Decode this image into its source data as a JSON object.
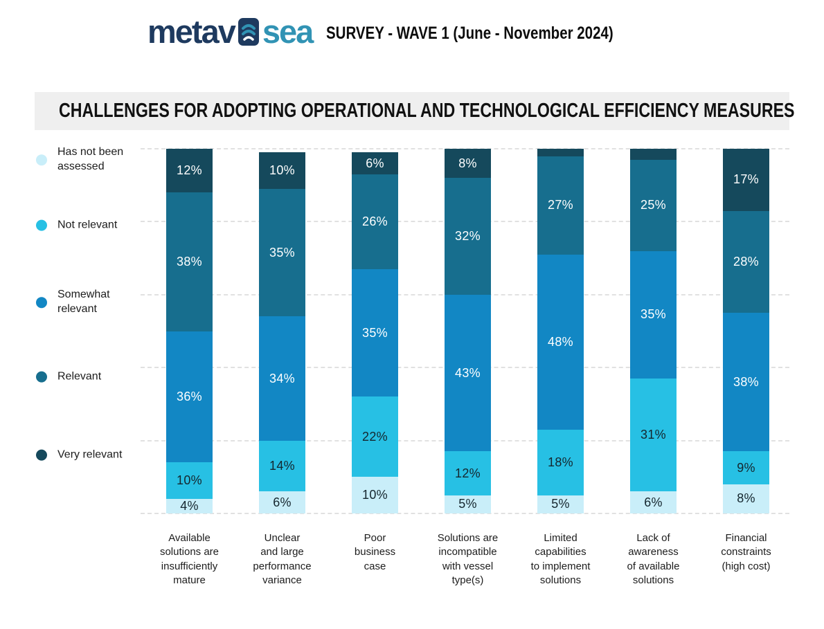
{
  "header": {
    "logo": {
      "text_left": "metav",
      "text_right": "sea",
      "navy": "#1e3a5f",
      "teal": "#3193b4",
      "icon": "wave-chevrons-icon"
    },
    "survey_title": "SURVEY - WAVE 1 (June - November 2024)"
  },
  "chart_data": {
    "type": "bar",
    "stacked": true,
    "title": "CHALLENGES FOR ADOPTING OPERATIONAL AND TECHNOLOGICAL EFFICIENCY MEASURES",
    "unit": "%",
    "ylim": [
      0,
      100
    ],
    "gridlines": [
      0,
      20,
      40,
      60,
      80,
      100
    ],
    "grid_style": "dashed",
    "legend_position": "left",
    "min_label_value": 4,
    "categories": [
      "Available\nsolutions are\ninsufficiently\nmature",
      "Unclear\nand large\nperformance\nvariance",
      "Poor\nbusiness\ncase",
      "Solutions are\nincompatible\nwith vessel\ntype(s)",
      "Limited\ncapabilities\nto implement\nsolutions",
      "Lack of\nawareness\nof available\nsolutions",
      "Financial\nconstraints\n(high cost)"
    ],
    "series": [
      {
        "name": "Has not been assessed",
        "color": "#c9eef9",
        "label_color": "#15262e",
        "values": [
          4,
          6,
          10,
          5,
          5,
          6,
          8
        ]
      },
      {
        "name": "Not relevant",
        "color": "#27c0e4",
        "label_color": "#15262e",
        "values": [
          10,
          14,
          22,
          12,
          18,
          31,
          9
        ]
      },
      {
        "name": "Somewhat relevant",
        "color": "#1287c4",
        "label_color": "#ffffff",
        "values": [
          36,
          34,
          35,
          43,
          48,
          35,
          38
        ]
      },
      {
        "name": "Relevant",
        "color": "#176e8e",
        "label_color": "#ffffff",
        "values": [
          38,
          35,
          26,
          32,
          27,
          25,
          28
        ]
      },
      {
        "name": "Very relevant",
        "color": "#15495c",
        "label_color": "#ffffff",
        "values": [
          12,
          10,
          6,
          8,
          2,
          3,
          17
        ]
      }
    ]
  }
}
